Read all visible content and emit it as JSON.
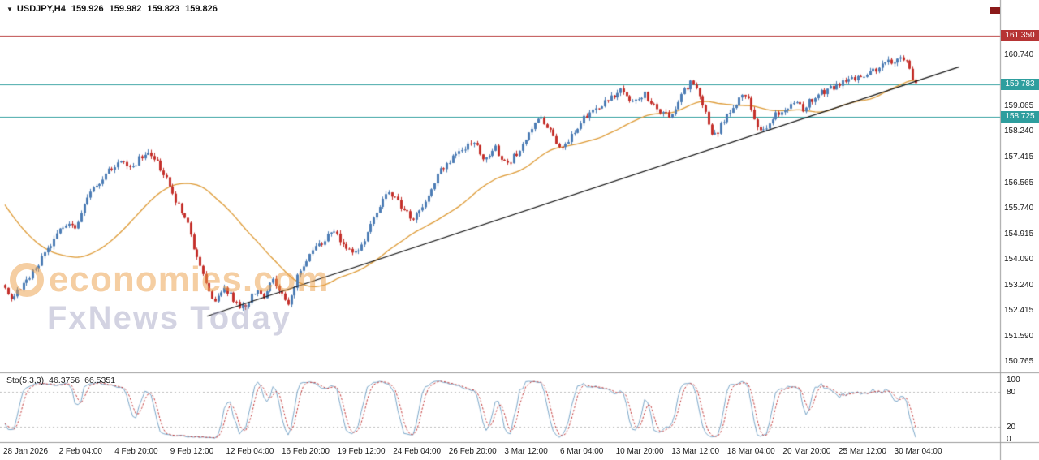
{
  "quote": {
    "marker": "▼",
    "symbol": "USDJPY,H4",
    "open": "159.926",
    "high": "159.982",
    "low": "159.823",
    "close": "159.826"
  },
  "watermark": {
    "line1": "economies.com",
    "line2": "FxNews Today",
    "color1": "rgba(235,158,70,0.50)",
    "color2": "rgba(158,158,190,0.45)"
  },
  "indicator": {
    "name": "Sto(5,3,3)",
    "k": "46.3756",
    "d": "66.5351",
    "levels": [
      "100",
      "80",
      "20",
      "0"
    ],
    "level_lines": [
      80,
      20
    ],
    "k_color": "#7aa6c8",
    "d_color": "#c23b3b"
  },
  "misc": {
    "shift_marker_color": "#8b1a1a"
  },
  "chart_data": {
    "type": "candlestick",
    "symbol": "USDJPY",
    "timeframe": "H4",
    "title": "USDJPY H4 chart with 161.350 resistance, 159.783 / 158.725 support lines, rising trendline and Stochastic(5,3,3)",
    "y_range": [
      150.45,
      162.1
    ],
    "num_candles": 300,
    "price_ticks": [
      "160.740",
      "159.065",
      "158.240",
      "157.415",
      "156.565",
      "155.740",
      "154.915",
      "154.090",
      "153.240",
      "152.415",
      "151.590",
      "150.765"
    ],
    "time_labels": [
      "28 Jan 2026",
      "2 Feb 04:00",
      "4 Feb 20:00",
      "9 Feb 12:00",
      "12 Feb 04:00",
      "16 Feb 20:00",
      "19 Feb 12:00",
      "24 Feb 04:00",
      "26 Feb 20:00",
      "3 Mar 12:00",
      "6 Mar 04:00",
      "10 Mar 20:00",
      "13 Mar 12:00",
      "18 Mar 04:00",
      "20 Mar 20:00",
      "25 Mar 12:00",
      "30 Mar 04:00"
    ],
    "hlines": [
      {
        "label": "161.350",
        "price": 161.35,
        "color": "#b63434"
      },
      {
        "label": "159.783",
        "price": 159.783,
        "color": "#2e9e9e"
      },
      {
        "label": "158.725",
        "price": 158.725,
        "color": "#2e9e9e"
      }
    ],
    "trendline": {
      "f1": 0.222,
      "p1": 152.25,
      "f2": 1.048,
      "p2": 160.35,
      "color": "#111111"
    },
    "ma": {
      "period": 40,
      "color": "#dd9933"
    },
    "style": {
      "up_color": "#4d7db5",
      "down_color": "#c4302b"
    },
    "quote": {
      "open": "159.926",
      "close": "159.826"
    },
    "anchors": [
      [
        0,
        153.35
      ],
      [
        0.009,
        152.85
      ],
      [
        0.021,
        153.15
      ],
      [
        0.037,
        153.8
      ],
      [
        0.055,
        154.7
      ],
      [
        0.07,
        155.25
      ],
      [
        0.079,
        155.05
      ],
      [
        0.097,
        156.35
      ],
      [
        0.115,
        156.9
      ],
      [
        0.13,
        157.35
      ],
      [
        0.143,
        157.1
      ],
      [
        0.157,
        157.6
      ],
      [
        0.168,
        157.35
      ],
      [
        0.18,
        156.7
      ],
      [
        0.192,
        155.9
      ],
      [
        0.201,
        155.5
      ],
      [
        0.209,
        154.6
      ],
      [
        0.216,
        153.9
      ],
      [
        0.225,
        153.15
      ],
      [
        0.233,
        152.7
      ],
      [
        0.242,
        153.2
      ],
      [
        0.251,
        152.9
      ],
      [
        0.26,
        152.45
      ],
      [
        0.269,
        152.7
      ],
      [
        0.278,
        153.1
      ],
      [
        0.287,
        152.8
      ],
      [
        0.296,
        153.45
      ],
      [
        0.305,
        152.95
      ],
      [
        0.314,
        152.6
      ],
      [
        0.323,
        153.5
      ],
      [
        0.333,
        154.1
      ],
      [
        0.344,
        154.5
      ],
      [
        0.356,
        154.85
      ],
      [
        0.365,
        155.0
      ],
      [
        0.373,
        154.55
      ],
      [
        0.385,
        154.2
      ],
      [
        0.398,
        154.85
      ],
      [
        0.412,
        155.8
      ],
      [
        0.424,
        156.3
      ],
      [
        0.436,
        155.85
      ],
      [
        0.449,
        155.45
      ],
      [
        0.463,
        155.95
      ],
      [
        0.478,
        156.9
      ],
      [
        0.492,
        157.35
      ],
      [
        0.505,
        157.7
      ],
      [
        0.516,
        157.9
      ],
      [
        0.528,
        157.35
      ],
      [
        0.54,
        157.7
      ],
      [
        0.553,
        157.15
      ],
      [
        0.565,
        157.6
      ],
      [
        0.578,
        158.25
      ],
      [
        0.59,
        158.7
      ],
      [
        0.601,
        158.2
      ],
      [
        0.611,
        157.6
      ],
      [
        0.623,
        158.1
      ],
      [
        0.636,
        158.7
      ],
      [
        0.651,
        159.05
      ],
      [
        0.665,
        159.35
      ],
      [
        0.679,
        159.6
      ],
      [
        0.692,
        159.15
      ],
      [
        0.704,
        159.45
      ],
      [
        0.718,
        158.9
      ],
      [
        0.731,
        158.75
      ],
      [
        0.743,
        159.4
      ],
      [
        0.754,
        159.9
      ],
      [
        0.763,
        159.45
      ],
      [
        0.772,
        158.6
      ],
      [
        0.779,
        158.05
      ],
      [
        0.79,
        158.6
      ],
      [
        0.802,
        159.15
      ],
      [
        0.811,
        159.5
      ],
      [
        0.818,
        159.35
      ],
      [
        0.825,
        158.35
      ],
      [
        0.834,
        158.2
      ],
      [
        0.845,
        158.75
      ],
      [
        0.856,
        158.95
      ],
      [
        0.866,
        159.25
      ],
      [
        0.877,
        159.0
      ],
      [
        0.89,
        159.4
      ],
      [
        0.902,
        159.6
      ],
      [
        0.915,
        159.75
      ],
      [
        0.927,
        159.9
      ],
      [
        0.939,
        160.05
      ],
      [
        0.953,
        160.2
      ],
      [
        0.966,
        160.45
      ],
      [
        0.977,
        160.55
      ],
      [
        0.986,
        160.65
      ],
      [
        0.993,
        160.3
      ],
      [
        1,
        159.85
      ]
    ],
    "stochastic": {
      "k_period": 5,
      "slowing": 3,
      "d_period": 3
    }
  }
}
